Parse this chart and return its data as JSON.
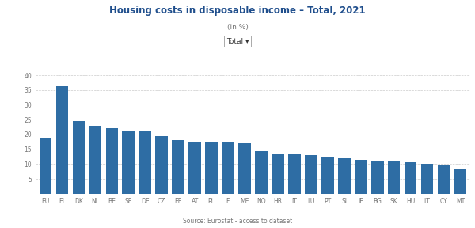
{
  "title": "Housing costs in disposable income – Total, 2021",
  "subtitle": "(in %)",
  "labels": [
    "EU",
    "EL",
    "DK",
    "NL",
    "BE",
    "SE",
    "DE",
    "CZ",
    "EE",
    "AT",
    "PL",
    "FI",
    "ME",
    "NO",
    "HR",
    "IT",
    "LU",
    "PT",
    "SI",
    "IE",
    "BG",
    "SK",
    "HU",
    "LT",
    "CY",
    "MT"
  ],
  "values": [
    19.0,
    36.5,
    24.5,
    23.0,
    22.0,
    21.0,
    21.0,
    19.5,
    18.0,
    17.5,
    17.5,
    17.5,
    17.0,
    14.5,
    13.5,
    13.5,
    13.0,
    12.5,
    12.0,
    11.5,
    11.0,
    11.0,
    10.5,
    10.0,
    9.5,
    8.5
  ],
  "bar_color": "#2E6DA4",
  "ylim": [
    0,
    40
  ],
  "yticks": [
    5,
    10,
    15,
    20,
    25,
    30,
    35,
    40
  ],
  "source_text": "Source: Eurostat - ",
  "source_link": "access to dataset",
  "background_color": "#ffffff",
  "grid_color": "#cccccc",
  "title_color": "#1f4e8c",
  "text_color": "#777777",
  "title_fontsize": 8.5,
  "subtitle_fontsize": 6.5,
  "tick_fontsize": 5.5,
  "source_fontsize": 5.5
}
